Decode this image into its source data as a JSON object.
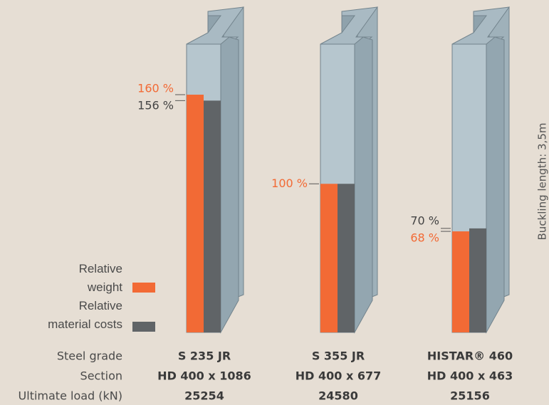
{
  "chart_data": {
    "type": "bar",
    "categories": [
      "S 235 JR",
      "S 355 JR",
      "HISTAR® 460"
    ],
    "series": [
      {
        "name": "Relative weight",
        "color": "#f26a35",
        "values": [
          160,
          100,
          68
        ],
        "value_labels": [
          "160 %",
          "100 %",
          "68 %"
        ]
      },
      {
        "name": "Relative material costs",
        "color": "#606467",
        "values": [
          156,
          100,
          70
        ],
        "value_labels": [
          "156 %",
          null,
          "70 %"
        ]
      }
    ],
    "rows": [
      {
        "label": "Steel grade",
        "values": [
          "S 235 JR",
          "S 355 JR",
          "HISTAR® 460"
        ]
      },
      {
        "label": "Section",
        "values": [
          "HD 400 x 1086",
          "HD 400 x 677",
          "HD 400 x 463"
        ]
      },
      {
        "label": "Ultimate load (kN)",
        "values": [
          "25254",
          "24580",
          "25156"
        ]
      }
    ],
    "side_note": "Buckling length: 3,5m"
  }
}
